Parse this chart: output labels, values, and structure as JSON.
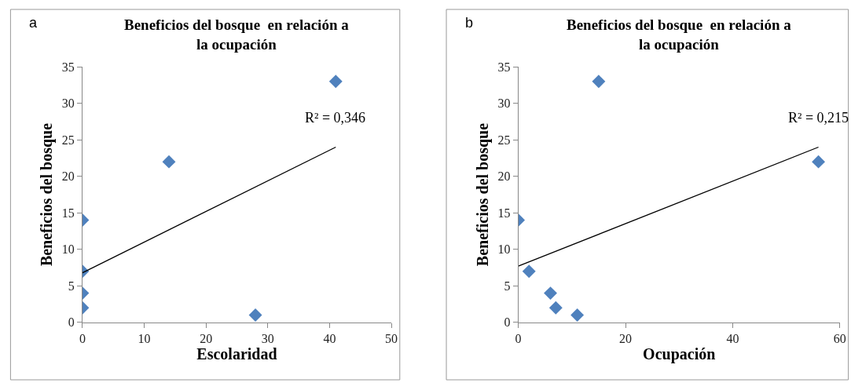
{
  "chart_data": [
    {
      "type": "scatter",
      "title": "Beneficios del bosque  en relación a\nla ocupación",
      "xlabel": "Escolaridad",
      "ylabel": "Beneficios del bosque",
      "grid": false,
      "xlim": [
        0,
        50
      ],
      "xticks": [
        0,
        10,
        20,
        30,
        40,
        50
      ],
      "ylim": [
        0,
        35
      ],
      "yticks": [
        0,
        5,
        10,
        15,
        20,
        25,
        30,
        35
      ],
      "annotations": [
        "a",
        "R² = 0,346"
      ],
      "series": [
        {
          "color": "#4f81bd",
          "marker": "diamond",
          "x": [
            0,
            0,
            0,
            0,
            14,
            28,
            41
          ],
          "values": [
            14,
            7,
            4,
            2,
            22,
            1,
            33
          ]
        },
        {
          "type": "line",
          "marker": "none",
          "color": "#000000",
          "x": [
            0,
            41
          ],
          "values": [
            6.8,
            24
          ]
        }
      ]
    },
    {
      "type": "scatter",
      "title": "Beneficios del bosque  en relación a\nla ocupación",
      "xlabel": "Ocupación",
      "ylabel": "Beneficios del bosque",
      "grid": false,
      "xlim": [
        0,
        60
      ],
      "xticks": [
        0,
        20,
        40,
        60
      ],
      "ylim": [
        0,
        35
      ],
      "yticks": [
        0,
        5,
        10,
        15,
        20,
        25,
        30,
        35
      ],
      "annotations": [
        "b",
        "R² = 0,215"
      ],
      "series": [
        {
          "color": "#4f81bd",
          "marker": "diamond",
          "x": [
            0,
            2,
            6,
            7,
            11,
            15,
            56
          ],
          "values": [
            14,
            7,
            4,
            2,
            1,
            33,
            22
          ]
        },
        {
          "type": "line",
          "marker": "none",
          "color": "#000000",
          "x": [
            0,
            56
          ],
          "values": [
            7.7,
            24
          ]
        }
      ]
    }
  ]
}
